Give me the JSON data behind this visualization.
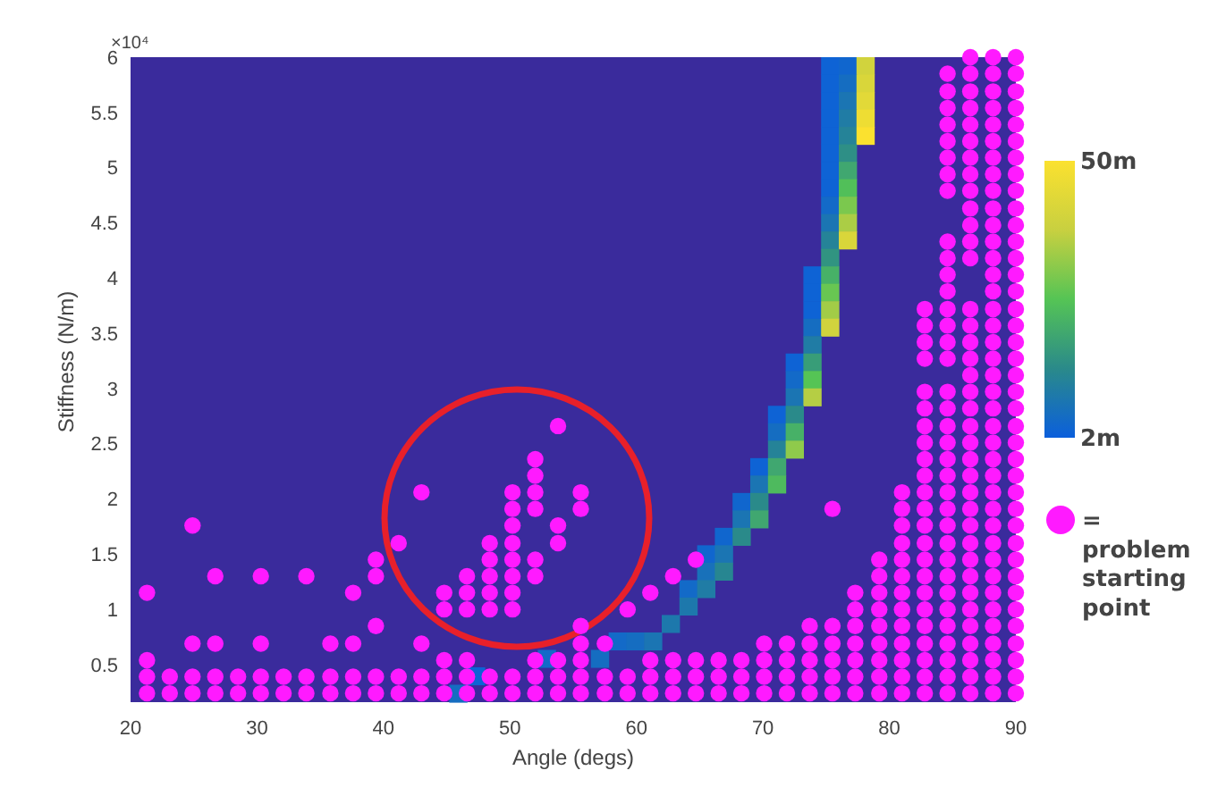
{
  "chart_data": {
    "type": "heatmap",
    "xlabel": "Angle (degs)",
    "ylabel": "Stiffness (N/m)",
    "annotations": [
      "×10⁴"
    ],
    "xlim": [
      20,
      90
    ],
    "xticks": [
      20,
      30,
      40,
      50,
      60,
      70,
      80,
      90
    ],
    "ylim": [
      0.16,
      6
    ],
    "yticks": [
      0.5,
      1,
      1.5,
      2,
      2.5,
      3,
      3.5,
      4,
      4.5,
      5,
      5.5,
      6
    ],
    "clim": [
      2,
      50
    ],
    "cticks": [
      {
        "value": 2,
        "label": "2m"
      },
      {
        "value": 50,
        "label": "50m"
      }
    ],
    "legend": "right",
    "marker": "circle",
    "cells": [
      [
        null,
        null,
        null,
        null,
        null,
        null,
        null,
        null,
        null,
        null,
        null,
        null,
        null,
        null,
        null,
        null,
        null,
        null,
        null,
        null,
        null,
        null,
        null,
        null,
        null,
        null,
        null,
        null,
        null,
        null,
        null,
        null,
        null,
        null,
        null,
        null,
        null,
        null,
        null,
        3,
        4,
        40,
        null,
        null,
        null,
        null,
        null,
        null,
        null,
        null
      ],
      [
        null,
        null,
        null,
        null,
        null,
        null,
        null,
        null,
        null,
        null,
        null,
        null,
        null,
        null,
        null,
        null,
        null,
        null,
        null,
        null,
        null,
        null,
        null,
        null,
        null,
        null,
        null,
        null,
        null,
        null,
        null,
        null,
        null,
        null,
        null,
        null,
        null,
        null,
        null,
        3,
        6,
        42,
        null,
        null,
        null,
        null,
        null,
        null,
        null,
        null
      ],
      [
        null,
        null,
        null,
        null,
        null,
        null,
        null,
        null,
        null,
        null,
        null,
        null,
        null,
        null,
        null,
        null,
        null,
        null,
        null,
        null,
        null,
        null,
        null,
        null,
        null,
        null,
        null,
        null,
        null,
        null,
        null,
        null,
        null,
        null,
        null,
        null,
        null,
        null,
        null,
        3,
        8,
        44,
        null,
        null,
        null,
        null,
        null,
        null,
        null,
        null
      ],
      [
        null,
        null,
        null,
        null,
        null,
        null,
        null,
        null,
        null,
        null,
        null,
        null,
        null,
        null,
        null,
        null,
        null,
        null,
        null,
        null,
        null,
        null,
        null,
        null,
        null,
        null,
        null,
        null,
        null,
        null,
        null,
        null,
        null,
        null,
        null,
        null,
        null,
        null,
        null,
        3,
        10,
        47,
        null,
        null,
        null,
        null,
        null,
        null,
        null,
        null
      ],
      [
        null,
        null,
        null,
        null,
        null,
        null,
        null,
        null,
        null,
        null,
        null,
        null,
        null,
        null,
        null,
        null,
        null,
        null,
        null,
        null,
        null,
        null,
        null,
        null,
        null,
        null,
        null,
        null,
        null,
        null,
        null,
        null,
        null,
        null,
        null,
        null,
        null,
        null,
        null,
        3,
        12,
        50,
        null,
        null,
        null,
        null,
        null,
        null,
        null,
        null
      ],
      [
        null,
        null,
        null,
        null,
        null,
        null,
        null,
        null,
        null,
        null,
        null,
        null,
        null,
        null,
        null,
        null,
        null,
        null,
        null,
        null,
        null,
        null,
        null,
        null,
        null,
        null,
        null,
        null,
        null,
        null,
        null,
        null,
        null,
        null,
        null,
        null,
        null,
        null,
        null,
        3,
        15,
        null,
        null,
        null,
        null,
        null,
        null,
        null,
        null,
        null
      ],
      [
        null,
        null,
        null,
        null,
        null,
        null,
        null,
        null,
        null,
        null,
        null,
        null,
        null,
        null,
        null,
        null,
        null,
        null,
        null,
        null,
        null,
        null,
        null,
        null,
        null,
        null,
        null,
        null,
        null,
        null,
        null,
        null,
        null,
        null,
        null,
        null,
        null,
        null,
        null,
        3,
        20,
        null,
        null,
        null,
        null,
        null,
        null,
        null,
        null,
        null
      ],
      [
        null,
        null,
        null,
        null,
        null,
        null,
        null,
        null,
        null,
        null,
        null,
        null,
        null,
        null,
        null,
        null,
        null,
        null,
        null,
        null,
        null,
        null,
        null,
        null,
        null,
        null,
        null,
        null,
        null,
        null,
        null,
        null,
        null,
        null,
        null,
        null,
        null,
        null,
        null,
        3,
        25,
        null,
        null,
        null,
        null,
        null,
        null,
        null,
        null,
        null
      ],
      [
        null,
        null,
        null,
        null,
        null,
        null,
        null,
        null,
        null,
        null,
        null,
        null,
        null,
        null,
        null,
        null,
        null,
        null,
        null,
        null,
        null,
        null,
        null,
        null,
        null,
        null,
        null,
        null,
        null,
        null,
        null,
        null,
        null,
        null,
        null,
        null,
        null,
        null,
        null,
        5,
        30,
        null,
        null,
        null,
        null,
        null,
        null,
        null,
        null,
        null
      ],
      [
        null,
        null,
        null,
        null,
        null,
        null,
        null,
        null,
        null,
        null,
        null,
        null,
        null,
        null,
        null,
        null,
        null,
        null,
        null,
        null,
        null,
        null,
        null,
        null,
        null,
        null,
        null,
        null,
        null,
        null,
        null,
        null,
        null,
        null,
        null,
        null,
        null,
        null,
        null,
        8,
        35,
        null,
        null,
        null,
        null,
        null,
        null,
        null,
        null,
        null
      ],
      [
        null,
        null,
        null,
        null,
        null,
        null,
        null,
        null,
        null,
        null,
        null,
        null,
        null,
        null,
        null,
        null,
        null,
        null,
        null,
        null,
        null,
        null,
        null,
        null,
        null,
        null,
        null,
        null,
        null,
        null,
        null,
        null,
        null,
        null,
        null,
        null,
        null,
        null,
        null,
        12,
        42,
        null,
        null,
        null,
        null,
        null,
        null,
        null,
        null,
        null
      ],
      [
        null,
        null,
        null,
        null,
        null,
        null,
        null,
        null,
        null,
        null,
        null,
        null,
        null,
        null,
        null,
        null,
        null,
        null,
        null,
        null,
        null,
        null,
        null,
        null,
        null,
        null,
        null,
        null,
        null,
        null,
        null,
        null,
        null,
        null,
        null,
        null,
        null,
        null,
        null,
        16,
        null,
        null,
        null,
        null,
        null,
        null,
        null,
        null,
        null,
        null
      ],
      [
        null,
        null,
        null,
        null,
        null,
        null,
        null,
        null,
        null,
        null,
        null,
        null,
        null,
        null,
        null,
        null,
        null,
        null,
        null,
        null,
        null,
        null,
        null,
        null,
        null,
        null,
        null,
        null,
        null,
        null,
        null,
        null,
        null,
        null,
        null,
        null,
        null,
        null,
        3,
        22,
        null,
        null,
        null,
        null,
        null,
        null,
        null,
        null,
        null,
        null
      ],
      [
        null,
        null,
        null,
        null,
        null,
        null,
        null,
        null,
        null,
        null,
        null,
        null,
        null,
        null,
        null,
        null,
        null,
        null,
        null,
        null,
        null,
        null,
        null,
        null,
        null,
        null,
        null,
        null,
        null,
        null,
        null,
        null,
        null,
        null,
        null,
        null,
        null,
        null,
        3,
        28,
        null,
        null,
        null,
        null,
        null,
        null,
        null,
        null,
        null,
        null
      ],
      [
        null,
        null,
        null,
        null,
        null,
        null,
        null,
        null,
        null,
        null,
        null,
        null,
        null,
        null,
        null,
        null,
        null,
        null,
        null,
        null,
        null,
        null,
        null,
        null,
        null,
        null,
        null,
        null,
        null,
        null,
        null,
        null,
        null,
        null,
        null,
        null,
        null,
        null,
        3,
        34,
        null,
        null,
        null,
        null,
        null,
        null,
        null,
        null,
        null,
        null
      ],
      [
        null,
        null,
        null,
        null,
        null,
        null,
        null,
        null,
        null,
        null,
        null,
        null,
        null,
        null,
        null,
        null,
        null,
        null,
        null,
        null,
        null,
        null,
        null,
        null,
        null,
        null,
        null,
        null,
        null,
        null,
        null,
        null,
        null,
        null,
        null,
        null,
        null,
        null,
        6,
        40,
        null,
        null,
        null,
        null,
        null,
        null,
        null,
        null,
        null,
        null
      ],
      [
        null,
        null,
        null,
        null,
        null,
        null,
        null,
        null,
        null,
        null,
        null,
        null,
        null,
        null,
        null,
        null,
        null,
        null,
        null,
        null,
        null,
        null,
        null,
        null,
        null,
        null,
        null,
        null,
        null,
        null,
        null,
        null,
        null,
        null,
        null,
        null,
        null,
        null,
        10,
        null,
        null,
        null,
        null,
        null,
        null,
        null,
        null,
        null,
        null,
        null
      ],
      [
        null,
        null,
        null,
        null,
        null,
        null,
        null,
        null,
        null,
        null,
        null,
        null,
        null,
        null,
        null,
        null,
        null,
        null,
        null,
        null,
        null,
        null,
        null,
        null,
        null,
        null,
        null,
        null,
        null,
        null,
        null,
        null,
        null,
        null,
        null,
        null,
        null,
        3,
        18,
        null,
        null,
        null,
        null,
        null,
        null,
        null,
        null,
        null,
        null,
        null
      ],
      [
        null,
        null,
        null,
        null,
        null,
        null,
        null,
        null,
        null,
        null,
        null,
        null,
        null,
        null,
        null,
        null,
        null,
        null,
        null,
        null,
        null,
        null,
        null,
        null,
        null,
        null,
        null,
        null,
        null,
        null,
        null,
        null,
        null,
        null,
        null,
        null,
        null,
        5,
        26,
        null,
        null,
        null,
        null,
        null,
        null,
        null,
        null,
        null,
        null,
        null
      ],
      [
        null,
        null,
        null,
        null,
        null,
        null,
        null,
        null,
        null,
        null,
        null,
        null,
        null,
        null,
        null,
        null,
        null,
        null,
        null,
        null,
        null,
        null,
        null,
        null,
        null,
        null,
        null,
        null,
        null,
        null,
        null,
        null,
        null,
        null,
        null,
        null,
        null,
        8,
        36,
        null,
        null,
        null,
        null,
        null,
        null,
        null,
        null,
        null,
        null,
        null
      ],
      [
        null,
        null,
        null,
        null,
        null,
        null,
        null,
        null,
        null,
        null,
        null,
        null,
        null,
        null,
        null,
        null,
        null,
        null,
        null,
        null,
        null,
        null,
        null,
        null,
        null,
        null,
        null,
        null,
        null,
        null,
        null,
        null,
        null,
        null,
        null,
        null,
        3,
        14,
        null,
        null,
        null,
        null,
        null,
        null,
        null,
        null,
        null,
        null,
        null,
        null
      ],
      [
        null,
        null,
        null,
        null,
        null,
        null,
        null,
        null,
        null,
        null,
        null,
        null,
        null,
        null,
        null,
        null,
        null,
        null,
        null,
        null,
        null,
        null,
        null,
        null,
        null,
        null,
        null,
        null,
        null,
        null,
        null,
        null,
        null,
        null,
        null,
        null,
        6,
        22,
        null,
        null,
        null,
        null,
        null,
        null,
        null,
        null,
        null,
        null,
        null,
        null
      ],
      [
        null,
        null,
        null,
        null,
        null,
        null,
        null,
        null,
        null,
        null,
        null,
        null,
        null,
        null,
        null,
        null,
        null,
        null,
        null,
        null,
        null,
        null,
        null,
        null,
        null,
        null,
        null,
        null,
        null,
        null,
        null,
        null,
        null,
        null,
        null,
        null,
        12,
        32,
        null,
        null,
        null,
        null,
        null,
        null,
        null,
        null,
        null,
        null,
        null,
        null
      ],
      [
        null,
        null,
        null,
        null,
        null,
        null,
        null,
        null,
        null,
        null,
        null,
        null,
        null,
        null,
        null,
        null,
        null,
        null,
        null,
        null,
        null,
        null,
        null,
        null,
        null,
        null,
        null,
        null,
        null,
        null,
        null,
        null,
        null,
        null,
        null,
        3,
        20,
        null,
        null,
        null,
        null,
        null,
        null,
        null,
        null,
        null,
        null,
        null,
        null,
        null
      ],
      [
        null,
        null,
        null,
        null,
        null,
        null,
        null,
        null,
        null,
        null,
        null,
        null,
        null,
        null,
        null,
        null,
        null,
        null,
        null,
        null,
        null,
        null,
        null,
        null,
        null,
        null,
        null,
        null,
        null,
        null,
        null,
        null,
        null,
        null,
        null,
        8,
        24,
        null,
        null,
        null,
        null,
        null,
        null,
        null,
        null,
        null,
        null,
        null,
        null,
        null
      ],
      [
        null,
        null,
        null,
        null,
        null,
        null,
        null,
        null,
        null,
        null,
        null,
        null,
        null,
        null,
        null,
        null,
        null,
        null,
        null,
        null,
        null,
        null,
        null,
        null,
        null,
        null,
        null,
        null,
        null,
        null,
        null,
        null,
        null,
        null,
        4,
        14,
        null,
        null,
        null,
        null,
        null,
        null,
        null,
        null,
        null,
        null,
        null,
        null,
        null,
        null
      ],
      [
        null,
        null,
        null,
        null,
        null,
        null,
        null,
        null,
        null,
        null,
        null,
        null,
        null,
        null,
        null,
        null,
        null,
        null,
        null,
        null,
        null,
        null,
        null,
        null,
        null,
        null,
        null,
        null,
        null,
        null,
        null,
        null,
        null,
        null,
        8,
        20,
        null,
        null,
        null,
        null,
        null,
        null,
        null,
        null,
        null,
        null,
        null,
        null,
        null,
        null
      ],
      [
        null,
        null,
        null,
        null,
        null,
        null,
        null,
        null,
        null,
        null,
        null,
        null,
        null,
        null,
        null,
        null,
        null,
        null,
        null,
        null,
        null,
        null,
        null,
        null,
        null,
        null,
        null,
        null,
        null,
        null,
        null,
        null,
        null,
        4,
        14,
        null,
        null,
        null,
        null,
        null,
        null,
        null,
        null,
        null,
        null,
        null,
        null,
        null,
        null,
        null
      ],
      [
        null,
        null,
        null,
        null,
        null,
        null,
        null,
        null,
        null,
        null,
        null,
        null,
        null,
        null,
        null,
        null,
        null,
        null,
        null,
        null,
        null,
        null,
        null,
        null,
        null,
        null,
        null,
        null,
        null,
        null,
        null,
        null,
        4,
        8,
        null,
        null,
        null,
        null,
        null,
        null,
        null,
        null,
        null,
        null,
        null,
        null,
        null,
        null,
        null,
        null
      ],
      [
        null,
        null,
        null,
        null,
        null,
        null,
        null,
        null,
        null,
        null,
        null,
        null,
        null,
        null,
        null,
        null,
        null,
        null,
        null,
        null,
        null,
        null,
        null,
        null,
        null,
        null,
        null,
        null,
        null,
        null,
        null,
        null,
        7,
        13,
        null,
        null,
        null,
        null,
        null,
        null,
        null,
        null,
        null,
        null,
        null,
        null,
        null,
        null,
        null,
        null
      ],
      [
        null,
        null,
        null,
        null,
        null,
        null,
        null,
        null,
        null,
        null,
        null,
        null,
        null,
        null,
        null,
        null,
        null,
        null,
        null,
        null,
        null,
        null,
        null,
        null,
        null,
        null,
        null,
        null,
        null,
        null,
        null,
        5,
        10,
        null,
        null,
        null,
        null,
        null,
        null,
        null,
        null,
        null,
        null,
        null,
        null,
        null,
        null,
        null,
        null,
        null
      ],
      [
        null,
        null,
        null,
        null,
        null,
        null,
        null,
        null,
        null,
        null,
        null,
        null,
        null,
        null,
        null,
        null,
        null,
        null,
        null,
        null,
        null,
        null,
        null,
        null,
        null,
        null,
        null,
        null,
        null,
        null,
        null,
        9,
        null,
        null,
        null,
        null,
        null,
        null,
        null,
        null,
        null,
        null,
        null,
        null,
        null,
        null,
        null,
        null,
        null,
        null
      ],
      [
        null,
        null,
        null,
        null,
        null,
        null,
        null,
        null,
        null,
        null,
        null,
        null,
        null,
        null,
        null,
        null,
        null,
        null,
        null,
        null,
        null,
        null,
        null,
        null,
        null,
        null,
        null,
        null,
        null,
        null,
        9,
        null,
        null,
        null,
        null,
        null,
        null,
        null,
        null,
        null,
        null,
        null,
        null,
        null,
        null,
        null,
        null,
        null,
        null,
        null
      ],
      [
        null,
        null,
        null,
        null,
        null,
        null,
        null,
        null,
        null,
        null,
        null,
        null,
        null,
        null,
        null,
        null,
        null,
        null,
        null,
        null,
        null,
        null,
        null,
        null,
        null,
        null,
        null,
        5,
        6,
        8,
        null,
        null,
        null,
        null,
        null,
        null,
        null,
        null,
        null,
        null,
        null,
        null,
        null,
        null,
        null,
        null,
        null,
        null,
        null,
        null
      ],
      [
        null,
        null,
        null,
        null,
        null,
        null,
        null,
        null,
        null,
        null,
        null,
        null,
        null,
        null,
        null,
        null,
        null,
        null,
        null,
        null,
        null,
        null,
        null,
        5,
        null,
        null,
        6,
        null,
        null,
        null,
        null,
        null,
        null,
        null,
        null,
        null,
        null,
        null,
        null,
        null,
        null,
        null,
        null,
        null,
        null,
        null,
        null,
        null,
        null,
        null
      ],
      [
        null,
        null,
        null,
        null,
        null,
        null,
        null,
        null,
        null,
        null,
        null,
        null,
        null,
        null,
        null,
        null,
        null,
        null,
        null,
        3,
        null,
        null,
        null,
        null,
        null,
        null,
        null,
        null,
        null,
        null,
        null,
        null,
        null,
        null,
        null,
        null,
        null,
        null,
        null,
        null,
        null,
        null,
        null,
        null,
        null,
        null,
        null,
        null,
        null,
        null
      ],
      [
        null,
        null,
        null,
        null,
        null,
        null,
        null,
        null,
        null,
        null,
        null,
        null,
        null,
        null,
        null,
        null,
        null,
        null,
        6,
        null,
        null,
        null,
        null,
        null,
        null,
        null,
        null,
        null,
        null,
        null,
        null,
        null,
        null,
        null,
        null,
        null,
        null,
        null,
        null,
        null,
        null,
        null,
        null,
        null,
        null,
        null,
        null,
        null,
        null,
        null
      ]
    ],
    "series": [
      {
        "type": "scatter",
        "name": "= problem starting point",
        "color": "#ff1aff",
        "x": [
          21.3,
          21.3,
          21.3,
          21.3,
          23.1,
          23.1,
          24.9,
          24.9,
          24.9,
          24.9,
          26.7,
          26.7,
          26.7,
          26.7,
          28.5,
          28.5,
          30.3,
          30.3,
          30.3,
          30.3,
          32.1,
          32.1,
          33.9,
          33.9,
          33.9,
          35.8,
          35.8,
          35.8,
          37.6,
          37.6,
          37.6,
          37.6,
          39.4,
          39.4,
          39.4,
          39.4,
          39.4,
          41.2,
          41.2,
          41.2,
          43.0,
          43.0,
          43.0,
          43.0,
          44.8,
          44.8,
          44.8,
          44.8,
          44.8,
          46.6,
          46.6,
          46.6,
          46.6,
          46.6,
          46.6,
          48.4,
          48.4,
          48.4,
          48.4,
          48.4,
          48.4,
          48.4,
          50.2,
          50.2,
          50.2,
          50.2,
          50.2,
          50.2,
          50.2,
          50.2,
          50.2,
          50.2,
          52.0,
          52.0,
          52.0,
          52.0,
          52.0,
          52.0,
          52.0,
          52.0,
          52.0,
          53.8,
          53.8,
          53.8,
          53.8,
          53.8,
          53.8,
          55.6,
          55.6,
          55.6,
          55.6,
          55.6,
          55.6,
          55.6,
          57.5,
          57.5,
          57.5,
          59.3,
          59.3,
          59.3,
          61.1,
          61.1,
          61.1,
          61.1,
          62.9,
          62.9,
          62.9,
          62.9,
          64.7,
          64.7,
          64.7,
          64.7,
          66.5,
          66.5,
          66.5,
          68.3,
          68.3,
          68.3,
          70.1,
          70.1,
          70.1,
          70.1,
          71.9,
          71.9,
          71.9,
          71.9,
          73.7,
          73.7,
          73.7,
          73.7,
          73.7,
          75.5,
          75.5,
          75.5,
          75.5,
          75.5,
          75.5,
          77.3,
          77.3,
          77.3,
          77.3,
          77.3,
          77.3,
          77.3,
          79.2,
          79.2,
          79.2,
          79.2,
          79.2,
          79.2,
          79.2,
          79.2,
          79.2,
          81.0,
          81.0,
          81.0,
          81.0,
          81.0,
          81.0,
          81.0,
          81.0,
          81.0,
          81.0,
          81.0,
          81.0,
          81.0,
          82.8,
          82.8,
          82.8,
          82.8,
          82.8,
          82.8,
          82.8,
          82.8,
          82.8,
          82.8,
          82.8,
          82.8,
          82.8,
          82.8,
          82.8,
          82.8,
          82.8,
          82.8,
          82.8,
          82.8,
          82.8,
          82.8,
          82.8,
          84.6,
          84.6,
          84.6,
          84.6,
          84.6,
          84.6,
          84.6,
          84.6,
          84.6,
          84.6,
          84.6,
          84.6,
          84.6,
          84.6,
          84.6,
          84.6,
          84.6,
          84.6,
          84.6,
          84.6,
          84.6,
          84.6,
          84.6,
          84.6,
          84.6,
          84.6,
          84.6,
          84.6,
          84.6,
          84.6,
          84.6,
          84.6,
          84.6,
          84.6,
          84.6,
          86.4,
          86.4,
          86.4,
          86.4,
          86.4,
          86.4,
          86.4,
          86.4,
          86.4,
          86.4,
          86.4,
          86.4,
          86.4,
          86.4,
          86.4,
          86.4,
          86.4,
          86.4,
          86.4,
          86.4,
          86.4,
          86.4,
          86.4,
          86.4,
          86.4,
          86.4,
          86.4,
          86.4,
          86.4,
          86.4,
          86.4,
          86.4,
          86.4,
          86.4,
          86.4,
          86.4,
          86.4,
          88.2,
          88.2,
          88.2,
          88.2,
          88.2,
          88.2,
          88.2,
          88.2,
          88.2,
          88.2,
          88.2,
          88.2,
          88.2,
          88.2,
          88.2,
          88.2,
          88.2,
          88.2,
          88.2,
          88.2,
          88.2,
          88.2,
          88.2,
          88.2,
          88.2,
          88.2,
          88.2,
          88.2,
          88.2,
          88.2,
          88.2,
          88.2,
          88.2,
          88.2,
          88.2,
          88.2,
          88.2,
          88.2,
          88.2,
          90.0,
          90.0,
          90.0,
          90.0,
          90.0,
          90.0,
          90.0,
          90.0,
          90.0,
          90.0,
          90.0,
          90.0,
          90.0,
          90.0,
          90.0,
          90.0,
          90.0,
          90.0,
          90.0,
          90.0,
          90.0,
          90.0,
          90.0,
          90.0,
          90.0,
          90.0,
          90.0,
          90.0,
          90.0,
          90.0,
          90.0,
          90.0,
          90.0,
          90.0,
          90.0,
          90.0,
          90.0,
          90.0,
          90.0
        ],
        "values": [
          0.24,
          0.39,
          0.54,
          1.15,
          0.24,
          0.39,
          0.24,
          0.39,
          0.69,
          1.76,
          0.24,
          0.39,
          0.69,
          1.3,
          0.24,
          0.39,
          0.24,
          0.39,
          0.69,
          1.3,
          0.24,
          0.39,
          0.24,
          0.39,
          1.3,
          0.24,
          0.39,
          0.69,
          0.24,
          0.39,
          0.69,
          1.15,
          0.24,
          0.39,
          0.85,
          1.3,
          1.45,
          0.24,
          0.39,
          1.6,
          0.24,
          0.39,
          0.69,
          2.06,
          0.24,
          0.39,
          0.54,
          1,
          1.15,
          0.24,
          0.39,
          0.54,
          1,
          1.15,
          1.3,
          0.24,
          0.39,
          1,
          1.15,
          1.3,
          1.45,
          1.6,
          0.24,
          0.39,
          1,
          1.15,
          1.3,
          1.45,
          1.6,
          1.76,
          1.91,
          2.06,
          0.24,
          0.39,
          0.54,
          1.3,
          1.45,
          1.91,
          2.06,
          2.21,
          2.36,
          0.24,
          0.39,
          0.54,
          1.6,
          1.76,
          2.66,
          0.24,
          0.39,
          0.54,
          0.69,
          0.85,
          1.91,
          2.06,
          0.24,
          0.39,
          0.69,
          0.24,
          0.39,
          1,
          0.24,
          0.39,
          0.54,
          1.15,
          0.24,
          0.39,
          0.54,
          1.3,
          0.24,
          0.39,
          0.54,
          1.45,
          0.24,
          0.39,
          0.54,
          0.24,
          0.39,
          0.54,
          0.24,
          0.39,
          0.54,
          0.69,
          0.24,
          0.39,
          0.54,
          0.69,
          0.24,
          0.39,
          0.54,
          0.69,
          0.85,
          0.24,
          0.39,
          0.54,
          0.69,
          0.85,
          1.91,
          0.24,
          0.39,
          0.54,
          0.69,
          0.85,
          1,
          1.15,
          0.24,
          0.39,
          0.54,
          0.69,
          0.85,
          1,
          1.15,
          1.3,
          1.45,
          0.24,
          0.39,
          0.54,
          0.69,
          0.85,
          1,
          1.15,
          1.3,
          1.45,
          1.6,
          1.76,
          1.91,
          2.06,
          0.24,
          0.39,
          0.54,
          0.69,
          0.85,
          1,
          1.15,
          1.3,
          1.45,
          1.6,
          1.76,
          1.91,
          2.06,
          2.21,
          2.36,
          2.51,
          2.66,
          2.82,
          2.97,
          3.27,
          3.42,
          3.57,
          3.72,
          0.24,
          0.39,
          0.54,
          0.69,
          0.85,
          1,
          1.15,
          1.3,
          1.45,
          1.6,
          1.76,
          1.91,
          2.06,
          2.21,
          2.36,
          2.51,
          2.66,
          2.82,
          2.97,
          3.27,
          3.42,
          3.57,
          3.72,
          3.88,
          4.03,
          4.18,
          4.33,
          4.79,
          4.94,
          5.09,
          5.24,
          5.39,
          5.54,
          5.69,
          5.85,
          0.24,
          0.39,
          0.54,
          0.69,
          0.85,
          1,
          1.15,
          1.3,
          1.45,
          1.6,
          1.76,
          1.91,
          2.06,
          2.21,
          2.36,
          2.51,
          2.66,
          2.82,
          2.97,
          3.12,
          3.27,
          3.42,
          3.57,
          3.72,
          4.18,
          4.33,
          4.48,
          4.63,
          4.79,
          4.94,
          5.09,
          5.24,
          5.39,
          5.54,
          5.69,
          5.85,
          6,
          0.24,
          0.39,
          0.54,
          0.69,
          0.85,
          1,
          1.15,
          1.3,
          1.45,
          1.6,
          1.76,
          1.91,
          2.06,
          2.21,
          2.36,
          2.51,
          2.66,
          2.82,
          2.97,
          3.12,
          3.27,
          3.42,
          3.57,
          3.72,
          3.88,
          4.03,
          4.18,
          4.33,
          4.48,
          4.63,
          4.79,
          4.94,
          5.09,
          5.24,
          5.39,
          5.54,
          5.69,
          5.85,
          6,
          0.24,
          0.39,
          0.54,
          0.69,
          0.85,
          1,
          1.15,
          1.3,
          1.45,
          1.6,
          1.76,
          1.91,
          2.06,
          2.21,
          2.36,
          2.51,
          2.66,
          2.82,
          2.97,
          3.12,
          3.27,
          3.42,
          3.57,
          3.72,
          3.88,
          4.03,
          4.18,
          4.33,
          4.48,
          4.63,
          4.79,
          4.94,
          5.09,
          5.24,
          5.39,
          5.54,
          5.69,
          5.85,
          6
        ]
      }
    ]
  }
}
